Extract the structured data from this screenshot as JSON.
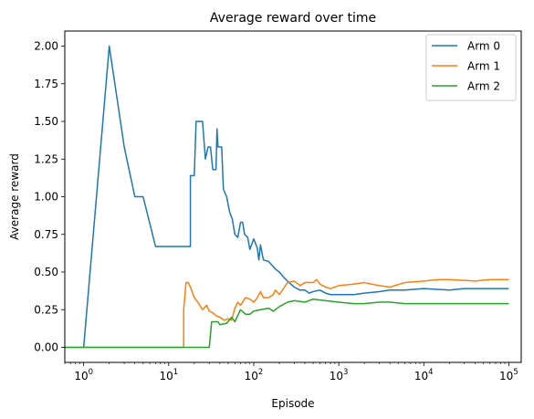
{
  "chart_data": {
    "type": "line",
    "title": "Average reward over time",
    "xlabel": "Episode",
    "ylabel": "Average reward",
    "xscale": "log",
    "xlim": [
      0.6,
      140000
    ],
    "ylim": [
      -0.1,
      2.1
    ],
    "grid": false,
    "legend_position": "top-right",
    "x_ticks": [
      {
        "value": 1,
        "base": "10",
        "exp": "0"
      },
      {
        "value": 10,
        "base": "10",
        "exp": "1"
      },
      {
        "value": 100,
        "base": "10",
        "exp": "2"
      },
      {
        "value": 1000,
        "base": "10",
        "exp": "3"
      },
      {
        "value": 10000,
        "base": "10",
        "exp": "4"
      },
      {
        "value": 100000,
        "base": "10",
        "exp": "5"
      }
    ],
    "y_ticks": [
      {
        "value": 0.0,
        "label": "0.00"
      },
      {
        "value": 0.25,
        "label": "0.25"
      },
      {
        "value": 0.5,
        "label": "0.50"
      },
      {
        "value": 0.75,
        "label": "0.75"
      },
      {
        "value": 1.0,
        "label": "1.00"
      },
      {
        "value": 1.25,
        "label": "1.25"
      },
      {
        "value": 1.5,
        "label": "1.50"
      },
      {
        "value": 1.75,
        "label": "1.75"
      },
      {
        "value": 2.0,
        "label": "2.00"
      }
    ],
    "series": [
      {
        "name": "Arm 0",
        "color": "#1f77b4",
        "points": [
          [
            1,
            0.0
          ],
          [
            2,
            2.0
          ],
          [
            3,
            1.33
          ],
          [
            4,
            1.0
          ],
          [
            5,
            1.0
          ],
          [
            7,
            0.67
          ],
          [
            15,
            0.67
          ],
          [
            18,
            0.67
          ],
          [
            18,
            1.14
          ],
          [
            20,
            1.14
          ],
          [
            21,
            1.5
          ],
          [
            25,
            1.5
          ],
          [
            27,
            1.25
          ],
          [
            29,
            1.33
          ],
          [
            31,
            1.33
          ],
          [
            33,
            1.18
          ],
          [
            36,
            1.18
          ],
          [
            37,
            1.45
          ],
          [
            38,
            1.33
          ],
          [
            42,
            1.33
          ],
          [
            44,
            1.05
          ],
          [
            48,
            1.0
          ],
          [
            52,
            0.9
          ],
          [
            56,
            0.85
          ],
          [
            60,
            0.75
          ],
          [
            65,
            0.73
          ],
          [
            70,
            0.83
          ],
          [
            74,
            0.83
          ],
          [
            78,
            0.75
          ],
          [
            85,
            0.73
          ],
          [
            90,
            0.65
          ],
          [
            100,
            0.72
          ],
          [
            110,
            0.66
          ],
          [
            115,
            0.58
          ],
          [
            120,
            0.68
          ],
          [
            130,
            0.58
          ],
          [
            150,
            0.57
          ],
          [
            180,
            0.52
          ],
          [
            200,
            0.5
          ],
          [
            230,
            0.46
          ],
          [
            260,
            0.43
          ],
          [
            300,
            0.4
          ],
          [
            350,
            0.38
          ],
          [
            400,
            0.38
          ],
          [
            450,
            0.36
          ],
          [
            500,
            0.37
          ],
          [
            600,
            0.38
          ],
          [
            700,
            0.36
          ],
          [
            800,
            0.35
          ],
          [
            1000,
            0.35
          ],
          [
            1500,
            0.35
          ],
          [
            2000,
            0.36
          ],
          [
            3000,
            0.37
          ],
          [
            4000,
            0.38
          ],
          [
            6000,
            0.38
          ],
          [
            10000,
            0.39
          ],
          [
            20000,
            0.38
          ],
          [
            30000,
            0.39
          ],
          [
            60000,
            0.39
          ],
          [
            100000,
            0.39
          ]
        ]
      },
      {
        "name": "Arm 1",
        "color": "#ff7f0e",
        "points": [
          [
            0.6,
            0.0
          ],
          [
            15,
            0.0
          ],
          [
            15,
            0.25
          ],
          [
            16,
            0.43
          ],
          [
            17,
            0.43
          ],
          [
            18,
            0.4
          ],
          [
            20,
            0.33
          ],
          [
            22,
            0.3
          ],
          [
            25,
            0.25
          ],
          [
            28,
            0.28
          ],
          [
            30,
            0.24
          ],
          [
            33,
            0.23
          ],
          [
            36,
            0.21
          ],
          [
            40,
            0.2
          ],
          [
            45,
            0.18
          ],
          [
            50,
            0.19
          ],
          [
            55,
            0.18
          ],
          [
            60,
            0.26
          ],
          [
            65,
            0.3
          ],
          [
            70,
            0.28
          ],
          [
            80,
            0.33
          ],
          [
            90,
            0.32
          ],
          [
            100,
            0.3
          ],
          [
            110,
            0.33
          ],
          [
            120,
            0.37
          ],
          [
            130,
            0.33
          ],
          [
            150,
            0.33
          ],
          [
            170,
            0.35
          ],
          [
            180,
            0.38
          ],
          [
            200,
            0.35
          ],
          [
            230,
            0.4
          ],
          [
            250,
            0.43
          ],
          [
            300,
            0.44
          ],
          [
            350,
            0.41
          ],
          [
            400,
            0.43
          ],
          [
            500,
            0.43
          ],
          [
            550,
            0.45
          ],
          [
            600,
            0.42
          ],
          [
            700,
            0.4
          ],
          [
            800,
            0.39
          ],
          [
            1000,
            0.41
          ],
          [
            1500,
            0.42
          ],
          [
            2000,
            0.43
          ],
          [
            3000,
            0.41
          ],
          [
            4000,
            0.4
          ],
          [
            6000,
            0.43
          ],
          [
            10000,
            0.44
          ],
          [
            15000,
            0.45
          ],
          [
            20000,
            0.45
          ],
          [
            40000,
            0.44
          ],
          [
            60000,
            0.45
          ],
          [
            100000,
            0.45
          ]
        ]
      },
      {
        "name": "Arm 2",
        "color": "#2ca02c",
        "points": [
          [
            0.6,
            0.0
          ],
          [
            30,
            0.0
          ],
          [
            32,
            0.17
          ],
          [
            38,
            0.17
          ],
          [
            40,
            0.15
          ],
          [
            48,
            0.16
          ],
          [
            55,
            0.2
          ],
          [
            60,
            0.17
          ],
          [
            70,
            0.25
          ],
          [
            80,
            0.22
          ],
          [
            90,
            0.22
          ],
          [
            100,
            0.24
          ],
          [
            120,
            0.25
          ],
          [
            150,
            0.26
          ],
          [
            170,
            0.24
          ],
          [
            200,
            0.27
          ],
          [
            250,
            0.3
          ],
          [
            300,
            0.31
          ],
          [
            400,
            0.3
          ],
          [
            500,
            0.32
          ],
          [
            700,
            0.31
          ],
          [
            1000,
            0.3
          ],
          [
            1500,
            0.29
          ],
          [
            2000,
            0.29
          ],
          [
            3000,
            0.3
          ],
          [
            4000,
            0.3
          ],
          [
            6000,
            0.29
          ],
          [
            10000,
            0.29
          ],
          [
            20000,
            0.29
          ],
          [
            50000,
            0.29
          ],
          [
            100000,
            0.29
          ]
        ]
      }
    ]
  }
}
